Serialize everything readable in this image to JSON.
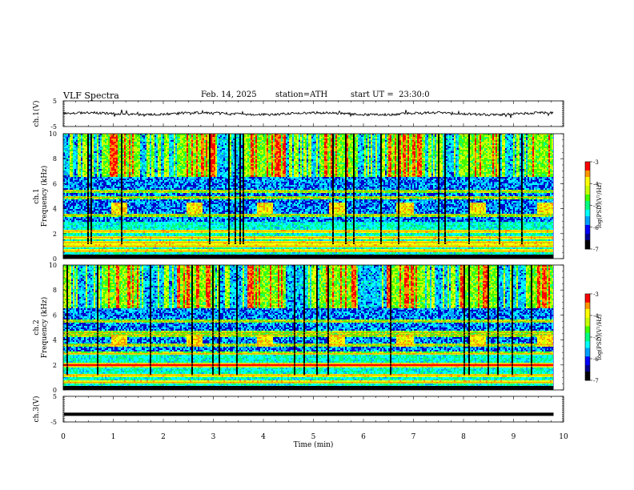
{
  "header": {
    "title": "VLF Spectra",
    "date": "Feb. 14, 2025",
    "station": "station=ATH",
    "start_ut": "start UT =  23:30:0"
  },
  "chart_data": {
    "type": "heatmap",
    "x_axis": {
      "label": "Time (min)",
      "range": [
        0,
        10
      ],
      "ticks": [
        "0",
        "1",
        "2",
        "3",
        "4",
        "5",
        "6",
        "7",
        "8",
        "9",
        "10"
      ],
      "data_extent_end": 9.8
    },
    "panels": [
      {
        "name": "ch.1 waveform",
        "type": "line",
        "ylabel": "ch.1(V)",
        "ylim": [
          -5,
          5
        ],
        "yticks": [
          "5",
          "-5"
        ],
        "baseline": 0
      },
      {
        "name": "ch.1 spectrogram",
        "type": "heatmap",
        "ylabel_channel": "ch.1",
        "ylabel": "Frequency (kHz)",
        "ylim": [
          0,
          10
        ],
        "yticks": [
          "0",
          "2",
          "4",
          "6",
          "8",
          "10"
        ],
        "colorbar": {
          "label": "log(PSD)(V²/Hz)",
          "range": [
            -7,
            -3
          ],
          "ticks": [
            "-3",
            "-4",
            "-5",
            "-6",
            "-7"
          ]
        },
        "burst_start_min": [
          0.95,
          2.45,
          3.85,
          5.3,
          6.65,
          8.1,
          9.45
        ],
        "burst_duration_min": 0.33,
        "burst_freq_khz": [
          3.6,
          4.5
        ],
        "persistent_bands_khz": [
          0.2,
          0.6,
          1.0,
          1.3,
          1.7,
          2.2,
          3.5,
          4.9,
          5.4
        ]
      },
      {
        "name": "ch.2 spectrogram",
        "type": "heatmap",
        "ylabel_channel": "ch.2",
        "ylabel": "Frequency (kHz)",
        "ylim": [
          0,
          10
        ],
        "yticks": [
          "0",
          "2",
          "4",
          "6",
          "8",
          "10"
        ],
        "colorbar": {
          "label": "log(PSD)(V²/Hz)",
          "range": [
            -7,
            -3
          ],
          "ticks": [
            "-3",
            "-4",
            "-5",
            "-6",
            "-7"
          ]
        },
        "burst_start_min": [
          0.95,
          2.45,
          3.85,
          5.3,
          6.65,
          8.1,
          9.45
        ],
        "burst_duration_min": 0.33,
        "burst_freq_khz": [
          3.4,
          4.3
        ],
        "persistent_bands_khz": [
          0.2,
          0.6,
          1.2,
          1.9,
          2.1,
          2.9,
          3.6,
          4.4,
          4.6,
          5.5
        ]
      },
      {
        "name": "ch.3 waveform",
        "type": "line",
        "ylabel": "ch.3(V)",
        "ylim": [
          -5,
          5
        ],
        "yticks": [
          "5",
          "-5"
        ],
        "baseline": -2
      }
    ],
    "colormap": [
      "#000000",
      "#00008c",
      "#0000ff",
      "#00a0ff",
      "#00ffff",
      "#00ff80",
      "#40ff00",
      "#c8ff00",
      "#ffff00",
      "#ff9600",
      "#ff0000",
      "#d00000",
      "#ffffff"
    ]
  }
}
